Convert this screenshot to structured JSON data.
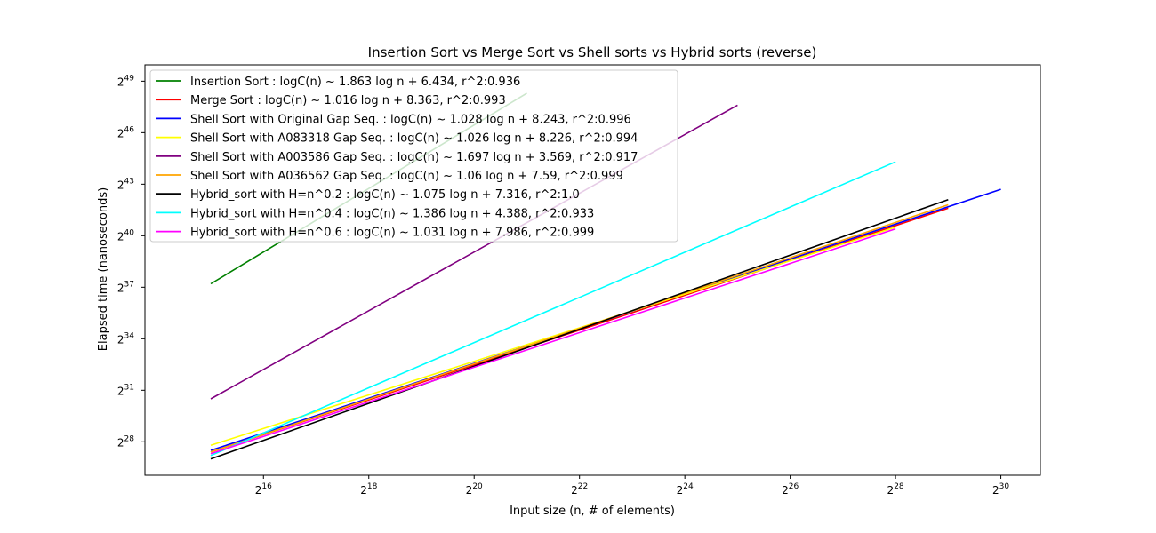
{
  "chart_data": {
    "type": "line",
    "title": "Insertion Sort vs Merge Sort vs Shell sorts vs Hybrid sorts (reverse)",
    "xlabel": "Input size (n, # of elements)",
    "ylabel": "Elapsed time (nanoseconds)",
    "x_scale": "log2",
    "y_scale": "log2",
    "xlim_log2": [
      13.75,
      30.75
    ],
    "ylim_log2": [
      26.05,
      49.95
    ],
    "x_ticks": [
      {
        "base": "2",
        "exp": "16",
        "log2": 16
      },
      {
        "base": "2",
        "exp": "18",
        "log2": 18
      },
      {
        "base": "2",
        "exp": "20",
        "log2": 20
      },
      {
        "base": "2",
        "exp": "22",
        "log2": 22
      },
      {
        "base": "2",
        "exp": "24",
        "log2": 24
      },
      {
        "base": "2",
        "exp": "26",
        "log2": 26
      },
      {
        "base": "2",
        "exp": "28",
        "log2": 28
      },
      {
        "base": "2",
        "exp": "30",
        "log2": 30
      }
    ],
    "y_ticks": [
      {
        "base": "2",
        "exp": "28",
        "log2": 28
      },
      {
        "base": "2",
        "exp": "31",
        "log2": 31
      },
      {
        "base": "2",
        "exp": "34",
        "log2": 34
      },
      {
        "base": "2",
        "exp": "37",
        "log2": 37
      },
      {
        "base": "2",
        "exp": "40",
        "log2": 40
      },
      {
        "base": "2",
        "exp": "43",
        "log2": 43
      },
      {
        "base": "2",
        "exp": "46",
        "log2": 46
      },
      {
        "base": "2",
        "exp": "49",
        "log2": 49
      }
    ],
    "grid": false,
    "legend_position": "upper-left",
    "series": [
      {
        "name": "Insertion Sort : logC(n) ~ 1.863 log n  + 6.434, r^2:0.936",
        "color": "#008000",
        "log2_n": [
          15,
          21
        ],
        "log2_time": [
          37.2,
          48.3
        ]
      },
      {
        "name": "Merge Sort : logC(n) ~ 1.016 log n  + 8.363, r^2:0.993",
        "color": "#ff0000",
        "log2_n": [
          15,
          29
        ],
        "log2_time": [
          27.4,
          41.6
        ]
      },
      {
        "name": "Shell Sort with Original Gap Seq. : logC(n) ~ 1.028 log n  + 8.243, r^2:0.996",
        "color": "#0000ff",
        "log2_n": [
          15,
          30
        ],
        "log2_time": [
          27.5,
          42.7
        ]
      },
      {
        "name": "Shell Sort with A083318 Gap Seq. : logC(n) ~ 1.026 log n  + 8.226, r^2:0.994",
        "color": "#ffff00",
        "log2_n": [
          15,
          28
        ],
        "log2_time": [
          27.8,
          40.5
        ]
      },
      {
        "name": "Shell Sort with A003586 Gap Seq. : logC(n) ~ 1.697 log n  + 3.569, r^2:0.917",
        "color": "#800080",
        "log2_n": [
          15,
          25
        ],
        "log2_time": [
          30.5,
          47.6
        ]
      },
      {
        "name": "Shell Sort with A036562 Gap Seq. : logC(n) ~ 1.06 log n  + 7.59, r^2:0.999",
        "color": "#ffa500",
        "log2_n": [
          15,
          29
        ],
        "log2_time": [
          27.4,
          41.8
        ]
      },
      {
        "name": "Hybrid_sort with H=n^0.2 : logC(n) ~ 1.075 log n  + 7.316, r^2:1.0",
        "color": "#000000",
        "log2_n": [
          15,
          29
        ],
        "log2_time": [
          27.0,
          42.1
        ]
      },
      {
        "name": "Hybrid_sort with H=n^0.4 : logC(n) ~ 1.386 log n  + 4.388, r^2:0.933",
        "color": "#00ffff",
        "log2_n": [
          15,
          28
        ],
        "log2_time": [
          27.2,
          44.3
        ]
      },
      {
        "name": "Hybrid_sort with H=n^0.6 : logC(n) ~ 1.031 log n  + 7.986, r^2:0.999",
        "color": "#ff00ff",
        "log2_n": [
          15,
          28
        ],
        "log2_time": [
          27.3,
          40.4
        ]
      }
    ]
  }
}
